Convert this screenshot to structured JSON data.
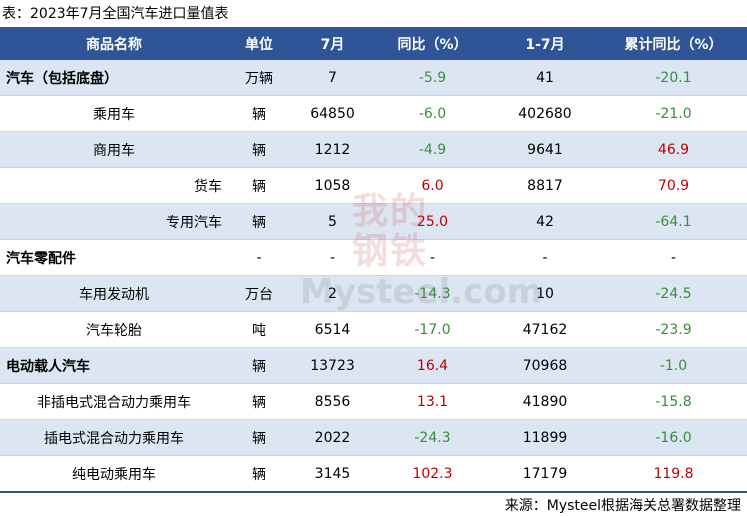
{
  "title": "表：2023年7月全国汽车进口量值表",
  "table": {
    "header": [
      "商品名称",
      "单位",
      "7月",
      "同比（%）",
      "1-7月",
      "累计同比（%）"
    ],
    "rows": [
      [
        "汽车（包括底盘）",
        "万辆",
        "7",
        "-5.9",
        "41",
        "-20.1"
      ],
      [
        "乘用车",
        "辆",
        "64850",
        "-6.0",
        "402680",
        "-21.0"
      ],
      [
        "商用车",
        "辆",
        "1212",
        "-4.9",
        "9641",
        "46.9"
      ],
      [
        "货车",
        "辆",
        "1058",
        "6.0",
        "8817",
        "70.9"
      ],
      [
        "专用汽车",
        "辆",
        "5",
        "25.0",
        "42",
        "-64.1"
      ],
      [
        "汽车零配件",
        "-",
        "-",
        "-",
        "-",
        "-"
      ],
      [
        "车用发动机",
        "万台",
        "2",
        "-14.3",
        "10",
        "-24.5"
      ],
      [
        "汽车轮胎",
        "吨",
        "6514",
        "-17.0",
        "47162",
        "-23.9"
      ],
      [
        "电动载人汽车",
        "辆",
        "13723",
        "16.4",
        "70968",
        "-1.0"
      ],
      [
        "非插电式混合动力乘用车",
        "辆",
        "8556",
        "13.1",
        "41890",
        "-15.8"
      ],
      [
        "插电式混合动力乘用车",
        "辆",
        "2022",
        "-24.3",
        "11899",
        "-16.0"
      ],
      [
        "纯电动乘用车",
        "辆",
        "3145",
        "102.3",
        "17179",
        "119.8"
      ]
    ]
  },
  "watermark": [
    "我的",
    "钢铁",
    "Mysteel.com"
  ],
  "source": "来源：Mysteel根据海关总署数据整理"
}
